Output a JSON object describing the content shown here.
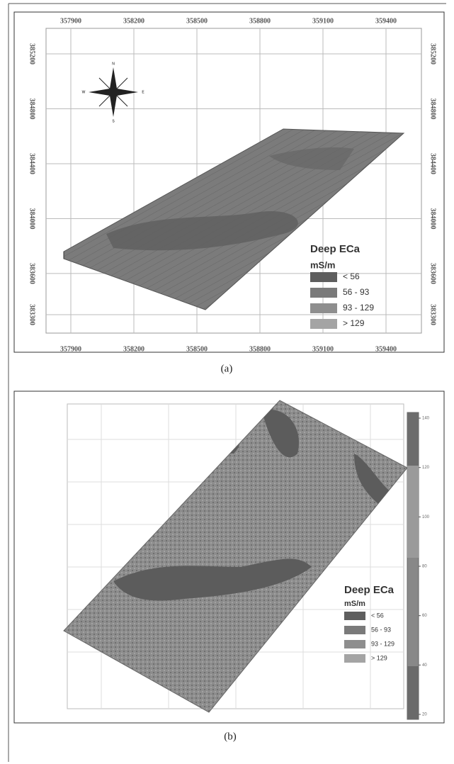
{
  "panel_a": {
    "x_ticks": [
      357900,
      358200,
      358500,
      358800,
      359100,
      359400
    ],
    "y_ticks": [
      385200,
      384800,
      384400,
      384000,
      383600,
      383300
    ],
    "compass": [
      "N",
      "S",
      "E",
      "W"
    ],
    "legend": {
      "title": "Deep ECa",
      "unit": "mS/m",
      "items": [
        "< 56",
        "56 - 93",
        "93 - 129",
        "> 129"
      ]
    },
    "caption": "(a)"
  },
  "panel_b": {
    "colorbar_ticks": [
      140,
      120,
      100,
      80,
      60,
      40,
      20
    ],
    "legend": {
      "title": "Deep ECa",
      "unit": "mS/m",
      "items": [
        "< 56",
        "56 - 93",
        "93 - 129",
        "> 129"
      ]
    },
    "caption": "(b)"
  }
}
